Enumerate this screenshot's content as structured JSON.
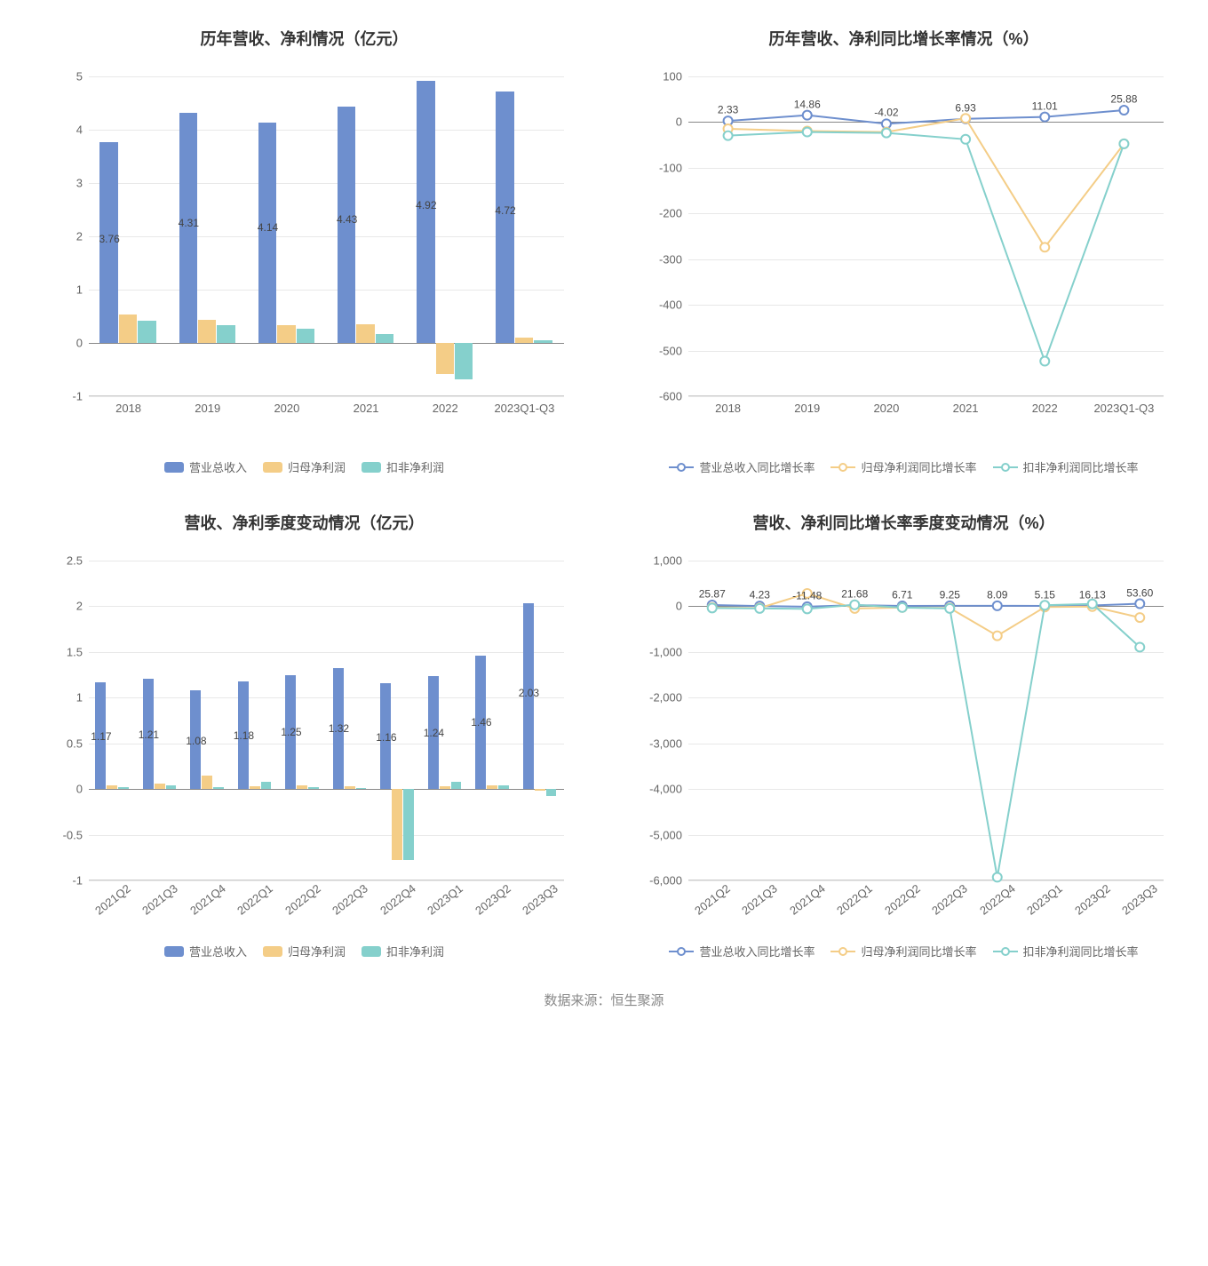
{
  "footer": "数据来源：恒生聚源",
  "colors": {
    "series_revenue": "#6e8fce",
    "series_profit": "#f4cd87",
    "series_deducted": "#85d0cc",
    "grid": "#e8e8e8",
    "axis": "#888888",
    "text": "#666666",
    "bg": "#ffffff"
  },
  "chart1": {
    "title": "历年营收、净利情况（亿元）",
    "type": "bar",
    "categories": [
      "2018",
      "2019",
      "2020",
      "2021",
      "2022",
      "2023Q1-Q3"
    ],
    "series": [
      {
        "name": "营业总收入",
        "color": "#6e8fce",
        "values": [
          3.76,
          4.31,
          4.14,
          4.43,
          4.92,
          4.72
        ],
        "show_labels": true
      },
      {
        "name": "归母净利润",
        "color": "#f4cd87",
        "values": [
          0.53,
          0.43,
          0.33,
          0.35,
          -0.58,
          0.1
        ],
        "show_labels": false
      },
      {
        "name": "扣非净利润",
        "color": "#85d0cc",
        "values": [
          0.42,
          0.34,
          0.26,
          0.17,
          -0.68,
          0.05
        ],
        "show_labels": false
      }
    ],
    "ylim": [
      -1,
      5
    ],
    "ytick_step": 1,
    "bar_group_width": 0.72,
    "title_fontsize": 18,
    "label_fontsize": 12
  },
  "chart2": {
    "title": "历年营收、净利同比增长率情况（%）",
    "type": "line",
    "categories": [
      "2018",
      "2019",
      "2020",
      "2021",
      "2022",
      "2023Q1-Q3"
    ],
    "series": [
      {
        "name": "营业总收入同比增长率",
        "color": "#6e8fce",
        "values": [
          2.33,
          14.86,
          -4.02,
          6.93,
          11.01,
          25.88
        ],
        "show_labels": true
      },
      {
        "name": "归母净利润同比增长率",
        "color": "#f4cd87",
        "values": [
          -15,
          -20,
          -22,
          8,
          -275,
          -48
        ],
        "show_labels": false
      },
      {
        "name": "扣非净利润同比增长率",
        "color": "#85d0cc",
        "values": [
          -30,
          -22,
          -24,
          -38,
          -525,
          -48
        ],
        "show_labels": false
      }
    ],
    "ylim": [
      -600,
      100
    ],
    "ytick_step": 100,
    "marker_size": 5,
    "line_width": 2,
    "title_fontsize": 18,
    "label_fontsize": 12
  },
  "chart3": {
    "title": "营收、净利季度变动情况（亿元）",
    "type": "bar",
    "categories": [
      "2021Q2",
      "2021Q3",
      "2021Q4",
      "2022Q1",
      "2022Q2",
      "2022Q3",
      "2022Q4",
      "2023Q1",
      "2023Q2",
      "2023Q3"
    ],
    "xtick_rotate": true,
    "series": [
      {
        "name": "营业总收入",
        "color": "#6e8fce",
        "values": [
          1.17,
          1.21,
          1.08,
          1.18,
          1.25,
          1.32,
          1.16,
          1.24,
          1.46,
          2.03
        ],
        "show_labels": true
      },
      {
        "name": "归母净利润",
        "color": "#f4cd87",
        "values": [
          0.04,
          0.06,
          0.15,
          0.03,
          0.04,
          0.03,
          -0.78,
          0.03,
          0.04,
          -0.02
        ],
        "show_labels": false
      },
      {
        "name": "扣非净利润",
        "color": "#85d0cc",
        "values": [
          0.02,
          0.04,
          0.02,
          0.08,
          0.02,
          0.01,
          -0.78,
          0.08,
          0.04,
          -0.08
        ],
        "show_labels": false
      }
    ],
    "ylim": [
      -1,
      2.5
    ],
    "ytick_step": 0.5,
    "bar_group_width": 0.72,
    "title_fontsize": 18,
    "label_fontsize": 12
  },
  "chart4": {
    "title": "营收、净利同比增长率季度变动情况（%）",
    "type": "line",
    "categories": [
      "2021Q2",
      "2021Q3",
      "2021Q4",
      "2022Q1",
      "2022Q2",
      "2022Q3",
      "2022Q4",
      "2023Q1",
      "2023Q2",
      "2023Q3"
    ],
    "xtick_rotate": true,
    "series": [
      {
        "name": "营业总收入同比增长率",
        "color": "#6e8fce",
        "values": [
          25.87,
          4.23,
          -11.48,
          21.68,
          6.71,
          9.25,
          8.09,
          5.15,
          16.13,
          53.6
        ],
        "show_labels": true
      },
      {
        "name": "归母净利润同比增长率",
        "color": "#f4cd87",
        "values": [
          -30,
          -40,
          280,
          -50,
          -30,
          -40,
          -650,
          -20,
          -10,
          -250
        ],
        "show_labels": false
      },
      {
        "name": "扣非净利润同比增长率",
        "color": "#85d0cc",
        "values": [
          -40,
          -50,
          -60,
          30,
          -30,
          -50,
          -5950,
          20,
          50,
          -900
        ],
        "show_labels": false
      }
    ],
    "ylim": [
      -6000,
      1000
    ],
    "ytick_step": 1000,
    "marker_size": 5,
    "line_width": 2,
    "title_fontsize": 18,
    "label_fontsize": 12
  }
}
